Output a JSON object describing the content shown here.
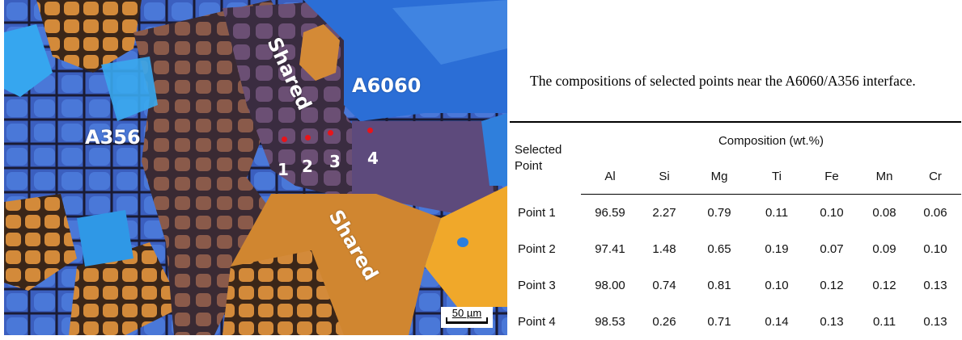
{
  "micrograph": {
    "region_labels": {
      "a356": "A356",
      "a6060": "A6060",
      "shared_top": "Shared",
      "shared_bottom": "Shared"
    },
    "points": [
      "1",
      "2",
      "3",
      "4"
    ],
    "scale_bar": "50 µm",
    "colors": {
      "point_marker": "#e8141a",
      "blue_grain": "#2f6fd0",
      "orange_grain": "#d9852a",
      "purple_matrix": "#6a4f78"
    }
  },
  "caption": "The compositions of selected points near the A6060/A356 interface.",
  "table": {
    "row_header": "Selected Point",
    "group_header": "Composition (wt.%)",
    "columns": [
      "Al",
      "Si",
      "Mg",
      "Ti",
      "Fe",
      "Mn",
      "Cr"
    ],
    "rows": [
      {
        "point": "Point 1",
        "values": [
          "96.59",
          "2.27",
          "0.79",
          "0.11",
          "0.10",
          "0.08",
          "0.06"
        ]
      },
      {
        "point": "Point 2",
        "values": [
          "97.41",
          "1.48",
          "0.65",
          "0.19",
          "0.07",
          "0.09",
          "0.10"
        ]
      },
      {
        "point": "Point 3",
        "values": [
          "98.00",
          "0.74",
          "0.81",
          "0.10",
          "0.12",
          "0.12",
          "0.13"
        ]
      },
      {
        "point": "Point 4",
        "values": [
          "98.53",
          "0.26",
          "0.71",
          "0.14",
          "0.13",
          "0.11",
          "0.13"
        ]
      }
    ]
  }
}
